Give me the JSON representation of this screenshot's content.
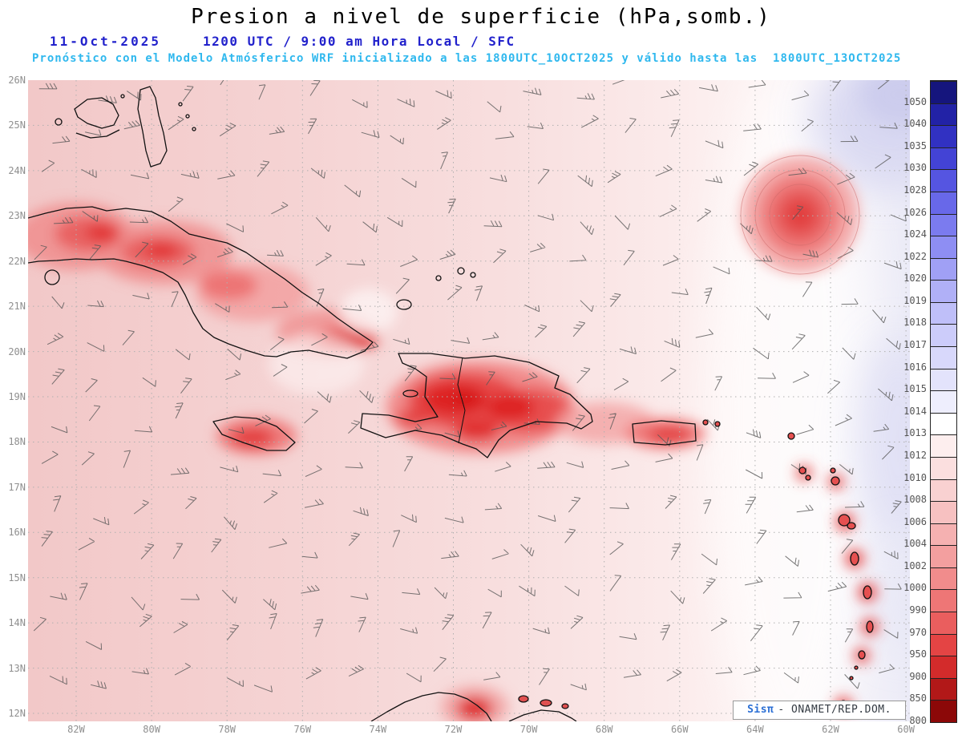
{
  "header": {
    "title": "Presion a nivel de superficie (hPa,somb.)",
    "date": "11-Oct-2025",
    "time_line": "1200 UTC / 9:00 am Hora Local / SFC",
    "model_line": "Pronóstico con el Modelo Atmósferico WRF inicializado a las 1800UTC_10OCT2025 y válido hasta las  1800UTC_13OCT2025"
  },
  "map": {
    "lat_labels": [
      "26N",
      "25N",
      "24N",
      "23N",
      "22N",
      "21N",
      "20N",
      "19N",
      "18N",
      "17N",
      "16N",
      "15N",
      "14N",
      "13N",
      "12N"
    ],
    "lon_labels": [
      "82W",
      "80W",
      "78W",
      "76W",
      "74W",
      "72W",
      "70W",
      "68W",
      "66W",
      "64W",
      "62W",
      "60W"
    ],
    "attribution": {
      "brand": "Sisπ",
      "text": "- ONAMET/REP.DOM."
    }
  },
  "colorbar": {
    "entries": [
      {
        "value": "1050",
        "color": "#15157d"
      },
      {
        "value": "1040",
        "color": "#2222a6"
      },
      {
        "value": "1035",
        "color": "#3131c2"
      },
      {
        "value": "1030",
        "color": "#4343d5"
      },
      {
        "value": "1028",
        "color": "#5555e1"
      },
      {
        "value": "1026",
        "color": "#6868e9"
      },
      {
        "value": "1024",
        "color": "#7b7bef"
      },
      {
        "value": "1022",
        "color": "#8e8ef3"
      },
      {
        "value": "1020",
        "color": "#a0a0f5"
      },
      {
        "value": "1019",
        "color": "#b0b0f7"
      },
      {
        "value": "1018",
        "color": "#bfbff9"
      },
      {
        "value": "1017",
        "color": "#ccccfa"
      },
      {
        "value": "1016",
        "color": "#d8d8fb"
      },
      {
        "value": "1015",
        "color": "#e3e3fc"
      },
      {
        "value": "1014",
        "color": "#eeeefd"
      },
      {
        "value": "1013",
        "color": "#ffffff"
      },
      {
        "value": "1012",
        "color": "#fdeeee"
      },
      {
        "value": "1010",
        "color": "#fbdfdf"
      },
      {
        "value": "1008",
        "color": "#f9d1d1"
      },
      {
        "value": "1006",
        "color": "#f7c1c1"
      },
      {
        "value": "1004",
        "color": "#f5b1b1"
      },
      {
        "value": "1002",
        "color": "#f39f9f"
      },
      {
        "value": "1000",
        "color": "#f18c8c"
      },
      {
        "value": "990",
        "color": "#ee7676"
      },
      {
        "value": "970",
        "color": "#ea5e5e"
      },
      {
        "value": "950",
        "color": "#e44444"
      },
      {
        "value": "900",
        "color": "#d32b2b"
      },
      {
        "value": "850",
        "color": "#b21818"
      },
      {
        "value": "800",
        "color": "#8c0808"
      }
    ]
  },
  "colors": {
    "header_blue": "#2222cc",
    "header_cyan": "#2fb8ee",
    "axis_label": "#8f8f8f",
    "wind_barb": "#565656",
    "coastline": "#111111"
  }
}
